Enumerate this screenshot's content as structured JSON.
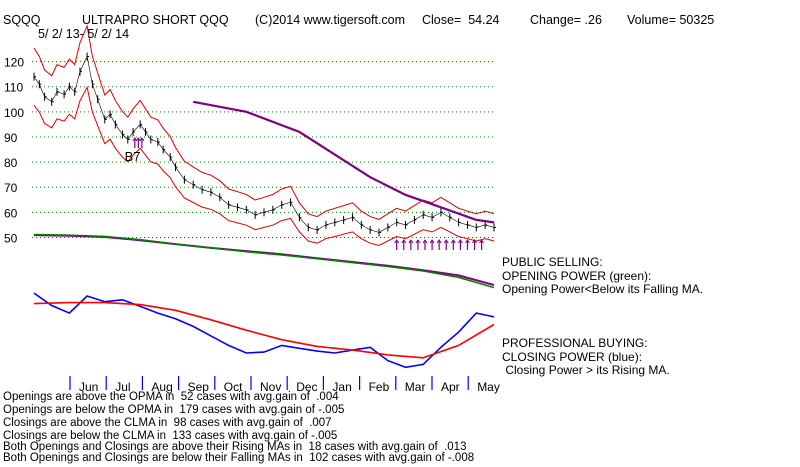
{
  "header": {
    "ticker": "SQQQ",
    "name": "ULTRAPRO SHORT QQQ",
    "copyright": "(C)2014 www.tigersoft.com",
    "close": "Close=  54.24",
    "change": "Change= .26",
    "volume": "Volume= 50325",
    "date_range": "5/ 2/ 13- 5/ 2/ 14"
  },
  "panels": {
    "public_selling_title": "PUBLIC SELLING:",
    "opening_power_title": "OPENING POWER (green):",
    "opening_power_note": "Opening Power<Below its Falling MA.",
    "professional_buying_title": "PROFESSIONAL BUYING:",
    "closing_power_title": "CLOSING POWER (blue):",
    "closing_power_note": " Closing Power > its Rising MA."
  },
  "stats": [
    "Openings are above the OPMA in  52 cases with avg.gain of  .004",
    "Openings are below the OPMA in  179 cases with avg.gain of -.005",
    "Closings are above the CLMA in  98 cases with avg.gain of  .007",
    "Closings are below the CLMA in  133 cases with avg.gain of -.005",
    "Both Openings and Closings are above their Rising MAs in  18 cases with avg.gain of  .013",
    "Both Openings and Closings are below their Falling MAs in  102 cases with avg.gain of -.008"
  ],
  "colors": {
    "price": "#000000",
    "ma": "#800080",
    "bands": "#e00000",
    "opening_power": "#008000",
    "closing_power": "#0000ff",
    "closing_ma": "#ff0000",
    "grid": "#008000",
    "axis": "#0000ff",
    "signals": "#800080"
  },
  "chart_data": {
    "type": "line",
    "title": "ULTRAPRO SHORT QQQ",
    "x_tick_labels": [
      "Jun",
      "Jul",
      "Aug",
      "Sep",
      "Oct",
      "Nov",
      "Dec",
      "Jan",
      "Feb",
      "Mar",
      "Apr",
      "May"
    ],
    "y_ticks": [
      50,
      60,
      70,
      80,
      90,
      100,
      110,
      120
    ],
    "ylim": [
      47,
      127
    ],
    "grid": "dotted horizontal",
    "annotations": [
      {
        "text": "B7",
        "x": 5.8,
        "y": 82
      }
    ],
    "series": [
      {
        "role": "price",
        "x": [
          0,
          0.3,
          0.6,
          1,
          1.3,
          1.7,
          2,
          2.3,
          2.6,
          3,
          3.3,
          3.6,
          4,
          4.3,
          4.6,
          5,
          5.3,
          5.6,
          6,
          6.3,
          6.6,
          7,
          7.3,
          7.7,
          8,
          8.5,
          9,
          9.5,
          10,
          10.5,
          11,
          11.5,
          12,
          12.5,
          13,
          13.5,
          14,
          14.5,
          15,
          15.5,
          16,
          16.5,
          17,
          17.5,
          18,
          18.5,
          19,
          19.5,
          20,
          20.5,
          21,
          21.5,
          22,
          22.5,
          23,
          23.5,
          24,
          24.5,
          25,
          25.5,
          26
        ],
        "y": [
          114,
          111,
          106,
          104,
          108,
          107,
          110,
          108,
          116,
          122,
          111,
          105,
          97,
          99,
          95,
          91,
          89,
          92,
          95,
          92,
          89,
          88,
          85,
          82,
          78,
          73,
          71,
          69,
          68,
          66,
          63,
          62,
          61,
          59,
          60,
          61,
          63,
          64,
          58,
          54,
          53,
          55,
          56,
          57,
          58,
          55,
          53,
          52,
          54,
          56,
          55,
          57,
          59,
          58,
          60,
          58,
          56,
          55,
          54,
          55,
          54
        ],
        "ylabel": "SQQQ"
      },
      {
        "role": "moving-average",
        "x": [
          9,
          12,
          15,
          17,
          19,
          21,
          23,
          25,
          26
        ],
        "y": [
          104,
          100,
          92,
          83,
          74,
          67,
          62,
          57,
          56
        ]
      },
      {
        "role": "opening-power",
        "x": [
          0,
          2,
          4,
          6,
          8,
          10,
          12,
          14,
          16,
          18,
          20,
          22,
          24,
          26
        ],
        "y": [
          0.93,
          0.92,
          0.9,
          0.85,
          0.78,
          0.72,
          0.66,
          0.61,
          0.55,
          0.49,
          0.43,
          0.36,
          0.26,
          0.1
        ]
      },
      {
        "role": "opening-power-ma",
        "x": [
          0,
          2,
          4,
          6,
          8,
          10,
          12,
          14,
          16,
          18,
          20,
          22,
          24,
          26
        ],
        "y": [
          0.92,
          0.91,
          0.89,
          0.84,
          0.78,
          0.72,
          0.67,
          0.62,
          0.56,
          0.5,
          0.44,
          0.37,
          0.29,
          0.14
        ]
      },
      {
        "role": "closing-power",
        "x": [
          0,
          1,
          2,
          3,
          4,
          5,
          6,
          7,
          8,
          9,
          10,
          11,
          12,
          13,
          14,
          15,
          16,
          17,
          18,
          19,
          20,
          21,
          22,
          23,
          24,
          25,
          26
        ],
        "y": [
          0.83,
          0.7,
          0.62,
          0.8,
          0.74,
          0.76,
          0.69,
          0.62,
          0.56,
          0.48,
          0.38,
          0.28,
          0.2,
          0.21,
          0.28,
          0.25,
          0.22,
          0.2,
          0.23,
          0.26,
          0.12,
          0.05,
          0.08,
          0.26,
          0.42,
          0.62,
          0.58
        ]
      },
      {
        "role": "closing-power-ma",
        "x": [
          0,
          2,
          4,
          6,
          8,
          10,
          12,
          14,
          16,
          18,
          20,
          22,
          24,
          26
        ],
        "y": [
          0.72,
          0.73,
          0.73,
          0.71,
          0.65,
          0.55,
          0.44,
          0.34,
          0.27,
          0.23,
          0.18,
          0.15,
          0.28,
          0.5
        ]
      }
    ]
  }
}
